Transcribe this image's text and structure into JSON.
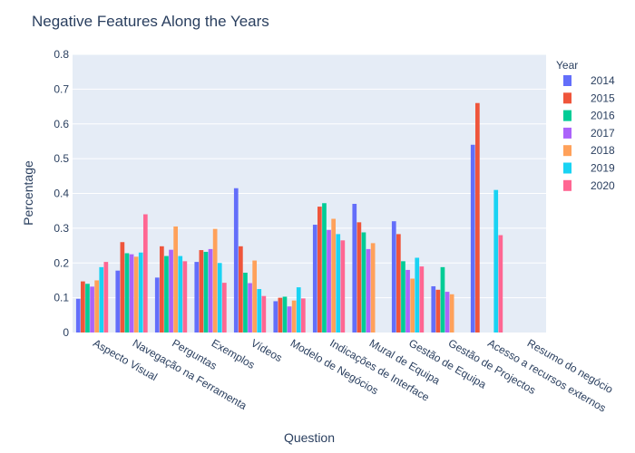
{
  "chart_data": {
    "type": "bar",
    "title": "Negative Features Along the Years",
    "xlabel": "Question",
    "ylabel": "Percentage",
    "ylim": [
      0,
      0.8
    ],
    "yticks": [
      "0",
      "0.1",
      "0.2",
      "0.3",
      "0.4",
      "0.5",
      "0.6",
      "0.7",
      "0.8"
    ],
    "grid": true,
    "legend_title": "Year",
    "legend_position": "top-right",
    "categories": [
      "Aspecto Visual",
      "Navegação na Ferramenta",
      "Perguntas",
      "Exemplos",
      "Vídeos",
      "Modelo de Negócios",
      "Indicações de Interface",
      "Mural de Equipa",
      "Gestão de Equipa",
      "Gestão de Projectos",
      "Acesso a recursos externos",
      "Resumo do negócio"
    ],
    "series": [
      {
        "name": "2014",
        "color": "#636efa",
        "values": [
          0.097,
          0.178,
          0.158,
          0.203,
          0.415,
          0.09,
          0.31,
          0.37,
          0.32,
          0.133,
          0.54,
          null
        ]
      },
      {
        "name": "2015",
        "color": "#ef553b",
        "values": [
          0.147,
          0.26,
          0.248,
          0.237,
          0.248,
          0.1,
          0.362,
          0.317,
          0.283,
          0.123,
          0.66,
          null
        ]
      },
      {
        "name": "2016",
        "color": "#00cc96",
        "values": [
          0.14,
          0.228,
          0.22,
          0.232,
          0.172,
          0.103,
          0.372,
          0.288,
          0.205,
          0.188,
          null,
          null
        ]
      },
      {
        "name": "2017",
        "color": "#ab63fa",
        "values": [
          0.132,
          0.225,
          0.238,
          0.24,
          0.142,
          0.075,
          0.295,
          0.24,
          0.18,
          0.117,
          null,
          null
        ]
      },
      {
        "name": "2018",
        "color": "#ffa15a",
        "values": [
          0.15,
          0.218,
          0.305,
          0.298,
          0.207,
          0.092,
          0.327,
          0.257,
          0.155,
          0.11,
          null,
          null
        ]
      },
      {
        "name": "2019",
        "color": "#19d3f3",
        "values": [
          0.188,
          0.23,
          0.22,
          0.2,
          0.125,
          0.13,
          0.283,
          null,
          0.215,
          null,
          0.41,
          null
        ]
      },
      {
        "name": "2020",
        "color": "#ff6692",
        "values": [
          0.203,
          0.34,
          0.205,
          0.143,
          0.105,
          0.098,
          0.265,
          null,
          0.19,
          null,
          0.28,
          null
        ]
      }
    ]
  }
}
